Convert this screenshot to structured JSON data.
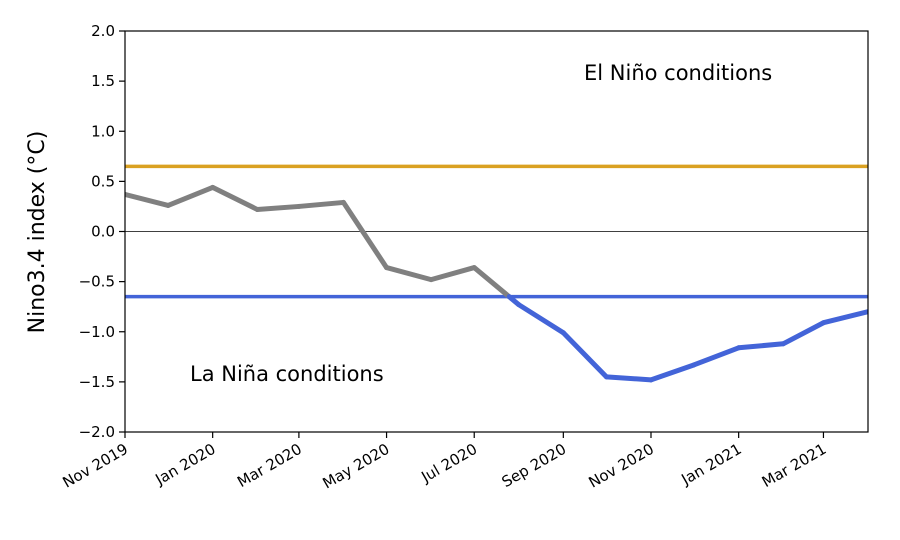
{
  "chart_data": {
    "type": "line",
    "ylabel": "Nino3.4 index (°C)",
    "ylim": [
      -2.0,
      2.0
    ],
    "xlim": [
      "2019-11-01",
      "2021-04-01"
    ],
    "y_ticks": [
      -2.0,
      -1.5,
      -1.0,
      -0.5,
      0.0,
      0.5,
      1.0,
      1.5,
      2.0
    ],
    "y_tick_labels": [
      "−2.0",
      "−1.5",
      "−1.0",
      "−0.5",
      "0.0",
      "0.5",
      "1.0",
      "1.5",
      "2.0"
    ],
    "x_ticks": [
      "2019-11-01",
      "2020-01-01",
      "2020-03-01",
      "2020-05-01",
      "2020-07-01",
      "2020-09-01",
      "2020-11-01",
      "2021-01-01",
      "2021-03-01"
    ],
    "x_tick_labels": [
      "Nov 2019",
      "Jan 2020",
      "Mar 2020",
      "May 2020",
      "Jul 2020",
      "Sep 2020",
      "Nov 2020",
      "Jan 2021",
      "Mar 2021"
    ],
    "x": [
      "2019-11-01",
      "2019-12-01",
      "2020-01-01",
      "2020-02-01",
      "2020-03-01",
      "2020-04-01",
      "2020-05-01",
      "2020-06-01",
      "2020-07-01",
      "2020-08-01",
      "2020-09-01",
      "2020-10-01",
      "2020-11-01",
      "2020-12-01",
      "2021-01-01",
      "2021-02-01",
      "2021-03-01",
      "2021-04-01"
    ],
    "values": [
      0.37,
      0.26,
      0.44,
      0.22,
      0.25,
      0.29,
      -0.36,
      -0.48,
      -0.36,
      -0.73,
      -1.01,
      -1.45,
      -1.48,
      -1.33,
      -1.16,
      -1.12,
      -0.91,
      -0.8
    ],
    "thresholds": [
      {
        "value": 0.65,
        "color": "#daa122"
      },
      {
        "value": -0.65,
        "color": "#4364d8"
      }
    ],
    "zero_line": true,
    "colors": {
      "neutral": "#808080",
      "la_nina": "#4364d8",
      "el_nino": "#daa122"
    },
    "grid": false,
    "annotations": {
      "el_nino": "El Niño conditions",
      "la_nina": "La Niña conditions"
    }
  }
}
